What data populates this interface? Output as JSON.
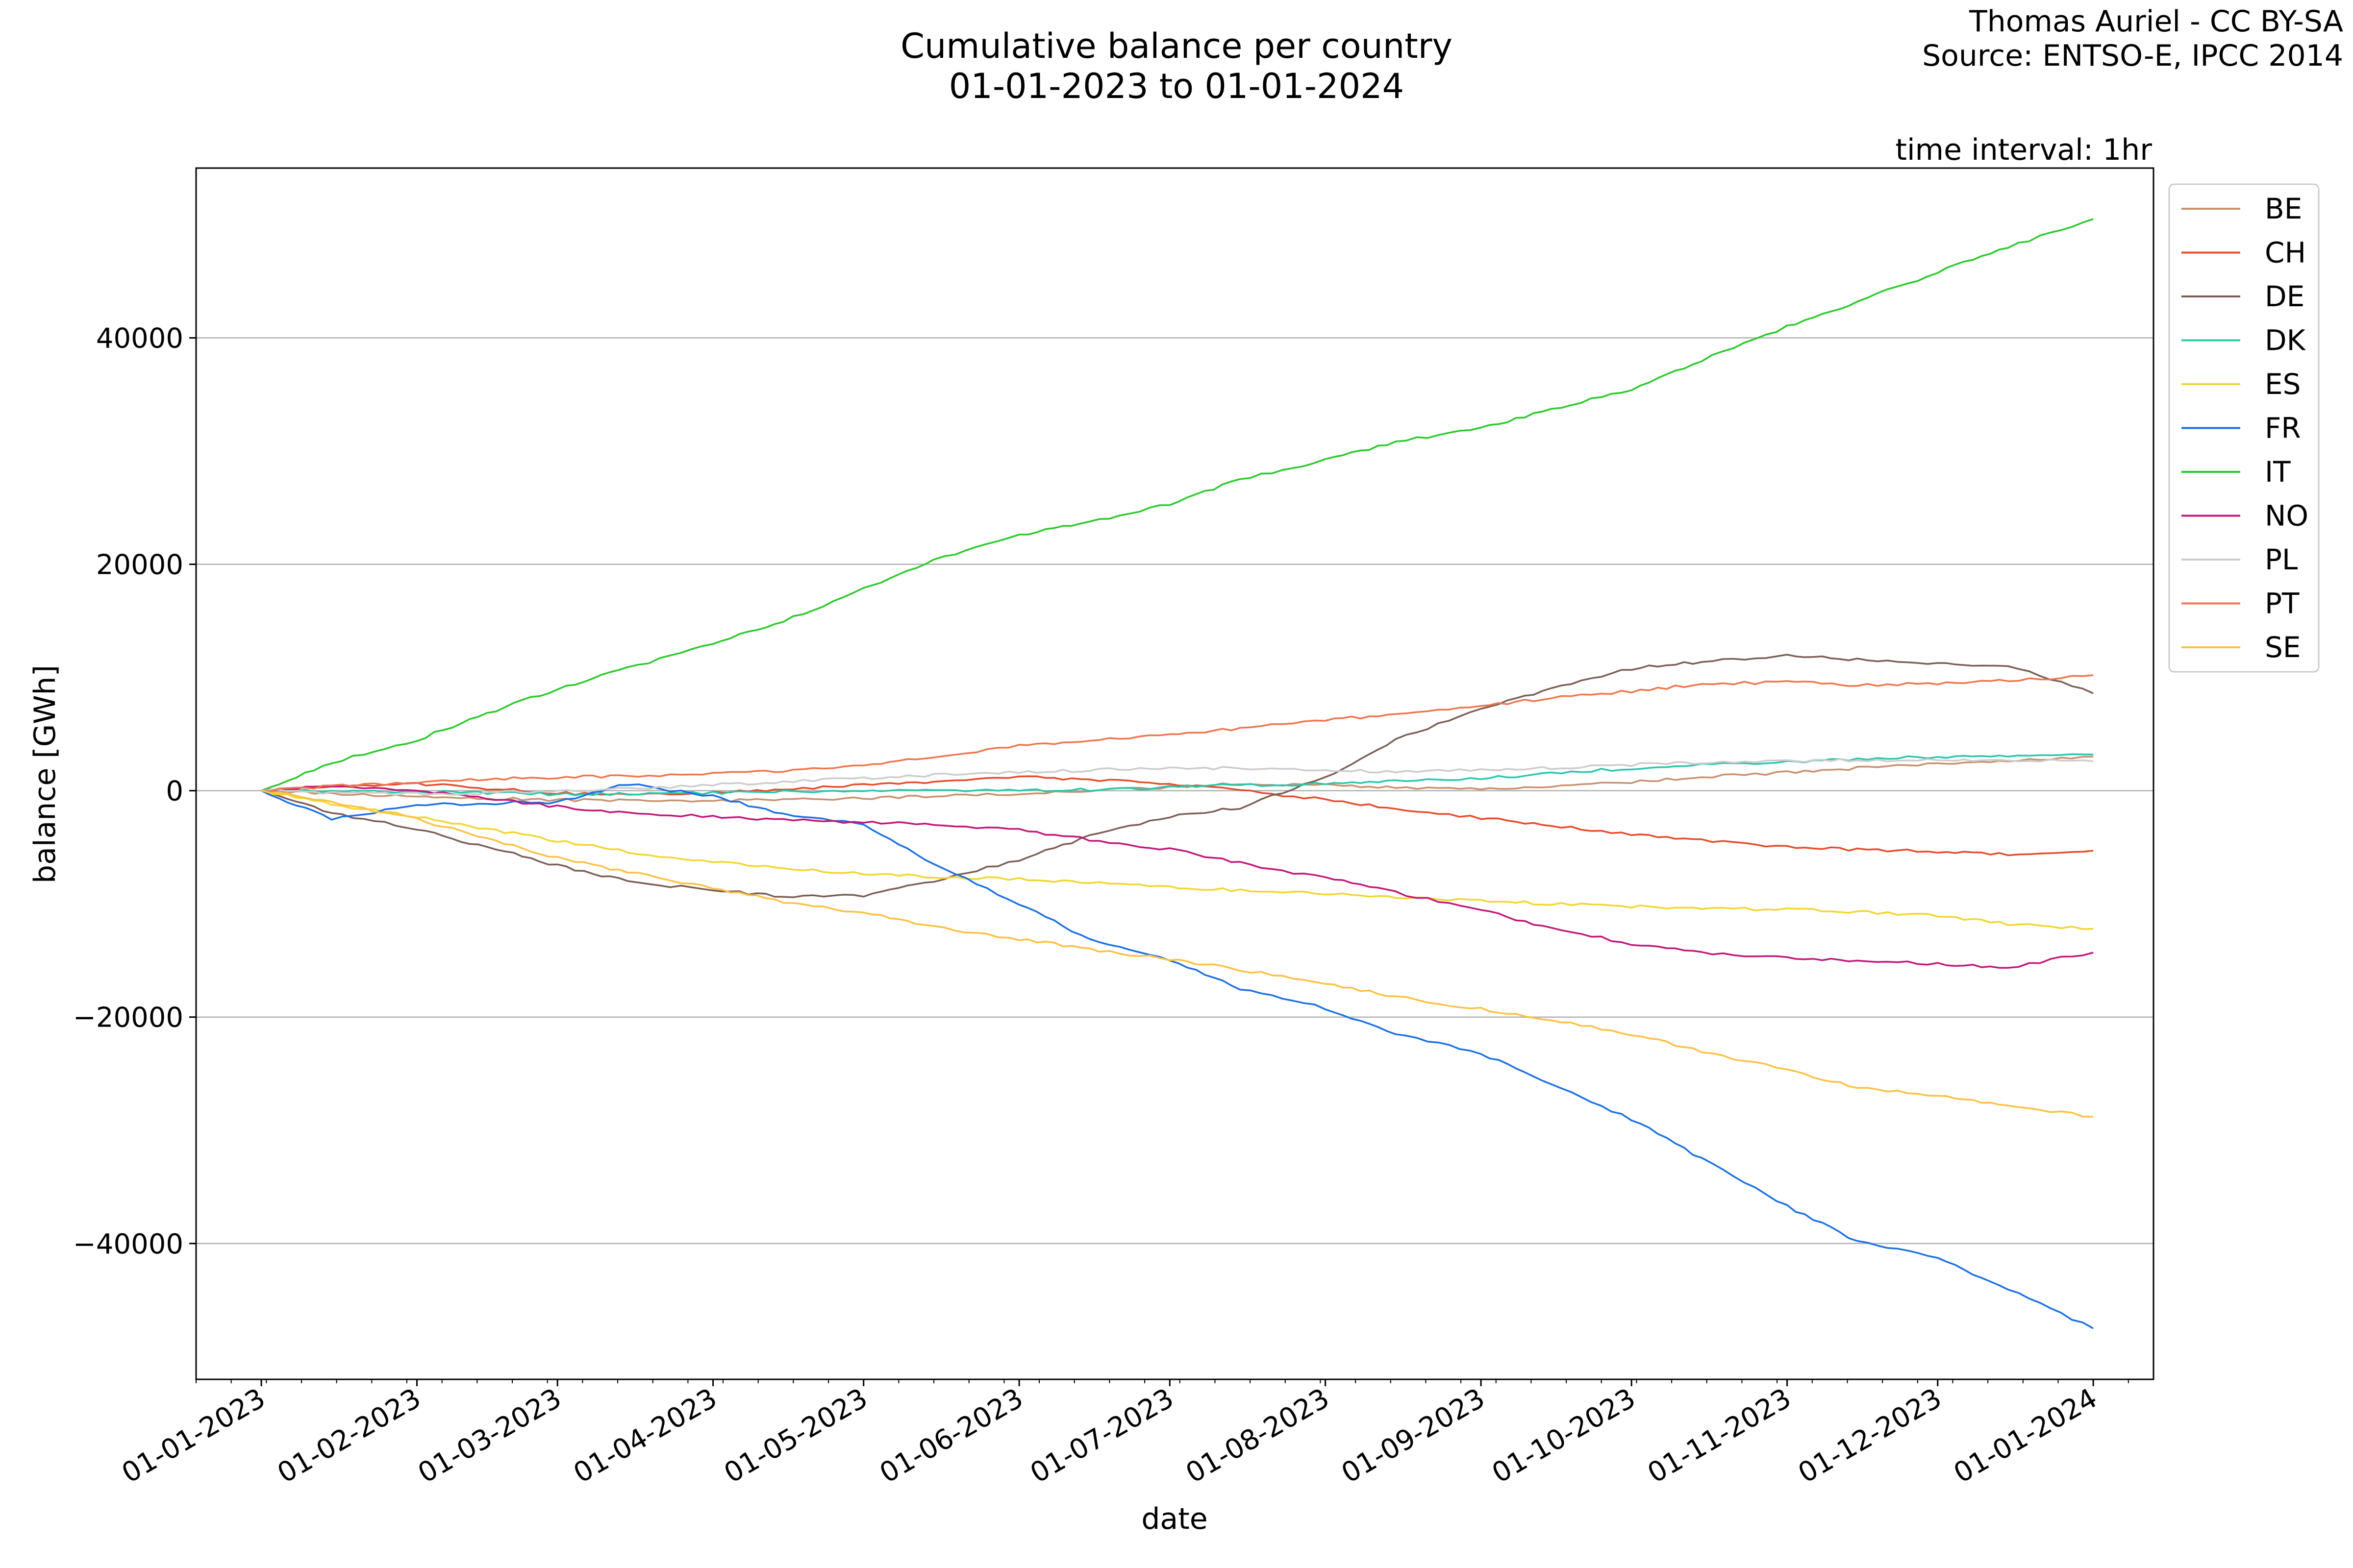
{
  "chart_data": {
    "type": "line",
    "title": "Cumulative balance per country",
    "subtitle": "01-01-2023 to 01-01-2024",
    "credit_lines": [
      "Thomas Auriel - CC BY-SA",
      "Source: ENTSO-E, IPCC 2014"
    ],
    "annotation": "time interval: 1hr",
    "xlabel": "date",
    "ylabel": "balance [GWh]",
    "xlim": [
      "2022-12-19",
      "2024-01-13"
    ],
    "ylim": [
      -52000,
      55000
    ],
    "x_ticks": [
      "01-01-2023",
      "01-02-2023",
      "01-03-2023",
      "01-04-2023",
      "01-05-2023",
      "01-06-2023",
      "01-07-2023",
      "01-08-2023",
      "01-09-2023",
      "01-10-2023",
      "01-11-2023",
      "01-12-2023",
      "01-01-2024"
    ],
    "y_ticks": [
      {
        "value": 40000,
        "label": "40000"
      },
      {
        "value": 20000,
        "label": "20000"
      },
      {
        "value": 0,
        "label": "0"
      },
      {
        "value": -20000,
        "label": "−20000"
      },
      {
        "value": -40000,
        "label": "−40000"
      }
    ],
    "grid": "horizontal",
    "legend_position": "outside-right",
    "x": [
      "2023-01-01",
      "2023-01-15",
      "2023-02-01",
      "2023-02-15",
      "2023-03-01",
      "2023-03-15",
      "2023-04-01",
      "2023-04-15",
      "2023-05-01",
      "2023-05-15",
      "2023-06-01",
      "2023-06-15",
      "2023-07-01",
      "2023-07-15",
      "2023-08-01",
      "2023-08-15",
      "2023-09-01",
      "2023-09-15",
      "2023-10-01",
      "2023-10-15",
      "2023-11-01",
      "2023-11-15",
      "2023-12-01",
      "2023-12-15",
      "2024-01-01"
    ],
    "series": [
      {
        "name": "BE",
        "color": "#c8916e",
        "values": [
          0,
          -300,
          -500,
          -700,
          -800,
          -900,
          -900,
          -800,
          -700,
          -500,
          -300,
          0,
          300,
          600,
          500,
          300,
          100,
          400,
          800,
          1200,
          1600,
          2000,
          2400,
          2700,
          3000
        ]
      },
      {
        "name": "CH",
        "color": "#e84a2a",
        "values": [
          0,
          300,
          600,
          200,
          -200,
          -400,
          -200,
          100,
          500,
          700,
          1200,
          1000,
          600,
          0,
          -800,
          -1600,
          -2400,
          -3100,
          -3800,
          -4400,
          -5000,
          -5200,
          -5400,
          -5600,
          -5300
        ]
      },
      {
        "name": "DE",
        "color": "#7c5d55",
        "values": [
          0,
          -2000,
          -3400,
          -5000,
          -6600,
          -8000,
          -8800,
          -9300,
          -9300,
          -8000,
          -6100,
          -4000,
          -2300,
          -1500,
          1200,
          4500,
          7200,
          9000,
          10800,
          11400,
          11900,
          11600,
          11200,
          11100,
          8600
        ]
      },
      {
        "name": "DK",
        "color": "#26c9aa",
        "values": [
          0,
          0,
          -100,
          -200,
          -300,
          -300,
          -200,
          -100,
          -100,
          0,
          0,
          100,
          300,
          500,
          600,
          800,
          1100,
          1500,
          2000,
          2300,
          2500,
          2800,
          3000,
          3100,
          3200
        ]
      },
      {
        "name": "ES",
        "color": "#f2d62c",
        "values": [
          0,
          -1200,
          -2300,
          -3400,
          -4400,
          -5400,
          -6300,
          -6900,
          -7300,
          -7600,
          -7800,
          -8100,
          -8500,
          -8800,
          -9100,
          -9400,
          -9700,
          -10000,
          -10200,
          -10400,
          -10500,
          -10700,
          -11000,
          -11800,
          -12200
        ]
      },
      {
        "name": "FR",
        "color": "#1a6fe6",
        "values": [
          0,
          -2500,
          -1300,
          -1100,
          -1000,
          600,
          -500,
          -2000,
          -3000,
          -6500,
          -10000,
          -13100,
          -15000,
          -17500,
          -19200,
          -21500,
          -23200,
          -25900,
          -29000,
          -32500,
          -36700,
          -39800,
          -41300,
          -44000,
          -47500
        ]
      },
      {
        "name": "IT",
        "color": "#2ac92a",
        "values": [
          0,
          2500,
          4500,
          6800,
          9000,
          10800,
          13000,
          15000,
          17800,
          20300,
          22600,
          23700,
          25300,
          27500,
          29200,
          30800,
          32000,
          33700,
          35500,
          38000,
          41000,
          43200,
          45800,
          48000,
          50500
        ]
      },
      {
        "name": "NO",
        "color": "#c4167a",
        "values": [
          0,
          500,
          0,
          -700,
          -1400,
          -2000,
          -2300,
          -2600,
          -2800,
          -3000,
          -3500,
          -4300,
          -5200,
          -6400,
          -7700,
          -9000,
          -10500,
          -12200,
          -13500,
          -14300,
          -14800,
          -15000,
          -15300,
          -15600,
          -14300
        ]
      },
      {
        "name": "PL",
        "color": "#cccccc",
        "values": [
          0,
          -200,
          -300,
          -200,
          0,
          200,
          500,
          800,
          1100,
          1400,
          1600,
          1800,
          2000,
          2000,
          1800,
          1700,
          1800,
          2000,
          2300,
          2500,
          2600,
          2700,
          2700,
          2700,
          2600
        ]
      },
      {
        "name": "PT",
        "color": "#f0744e",
        "values": [
          0,
          400,
          700,
          1000,
          1200,
          1300,
          1500,
          1700,
          2300,
          3000,
          4000,
          4400,
          5000,
          5500,
          6200,
          6800,
          7500,
          8200,
          8800,
          9400,
          9600,
          9300,
          9500,
          9700,
          10200
        ]
      },
      {
        "name": "SE",
        "color": "#ffc040",
        "values": [
          0,
          -1000,
          -2500,
          -4300,
          -5900,
          -7200,
          -8600,
          -9800,
          -10800,
          -12000,
          -13100,
          -14000,
          -14900,
          -15800,
          -17000,
          -18200,
          -19300,
          -20300,
          -21500,
          -23000,
          -24700,
          -26200,
          -27000,
          -27800,
          -28800
        ]
      }
    ]
  }
}
